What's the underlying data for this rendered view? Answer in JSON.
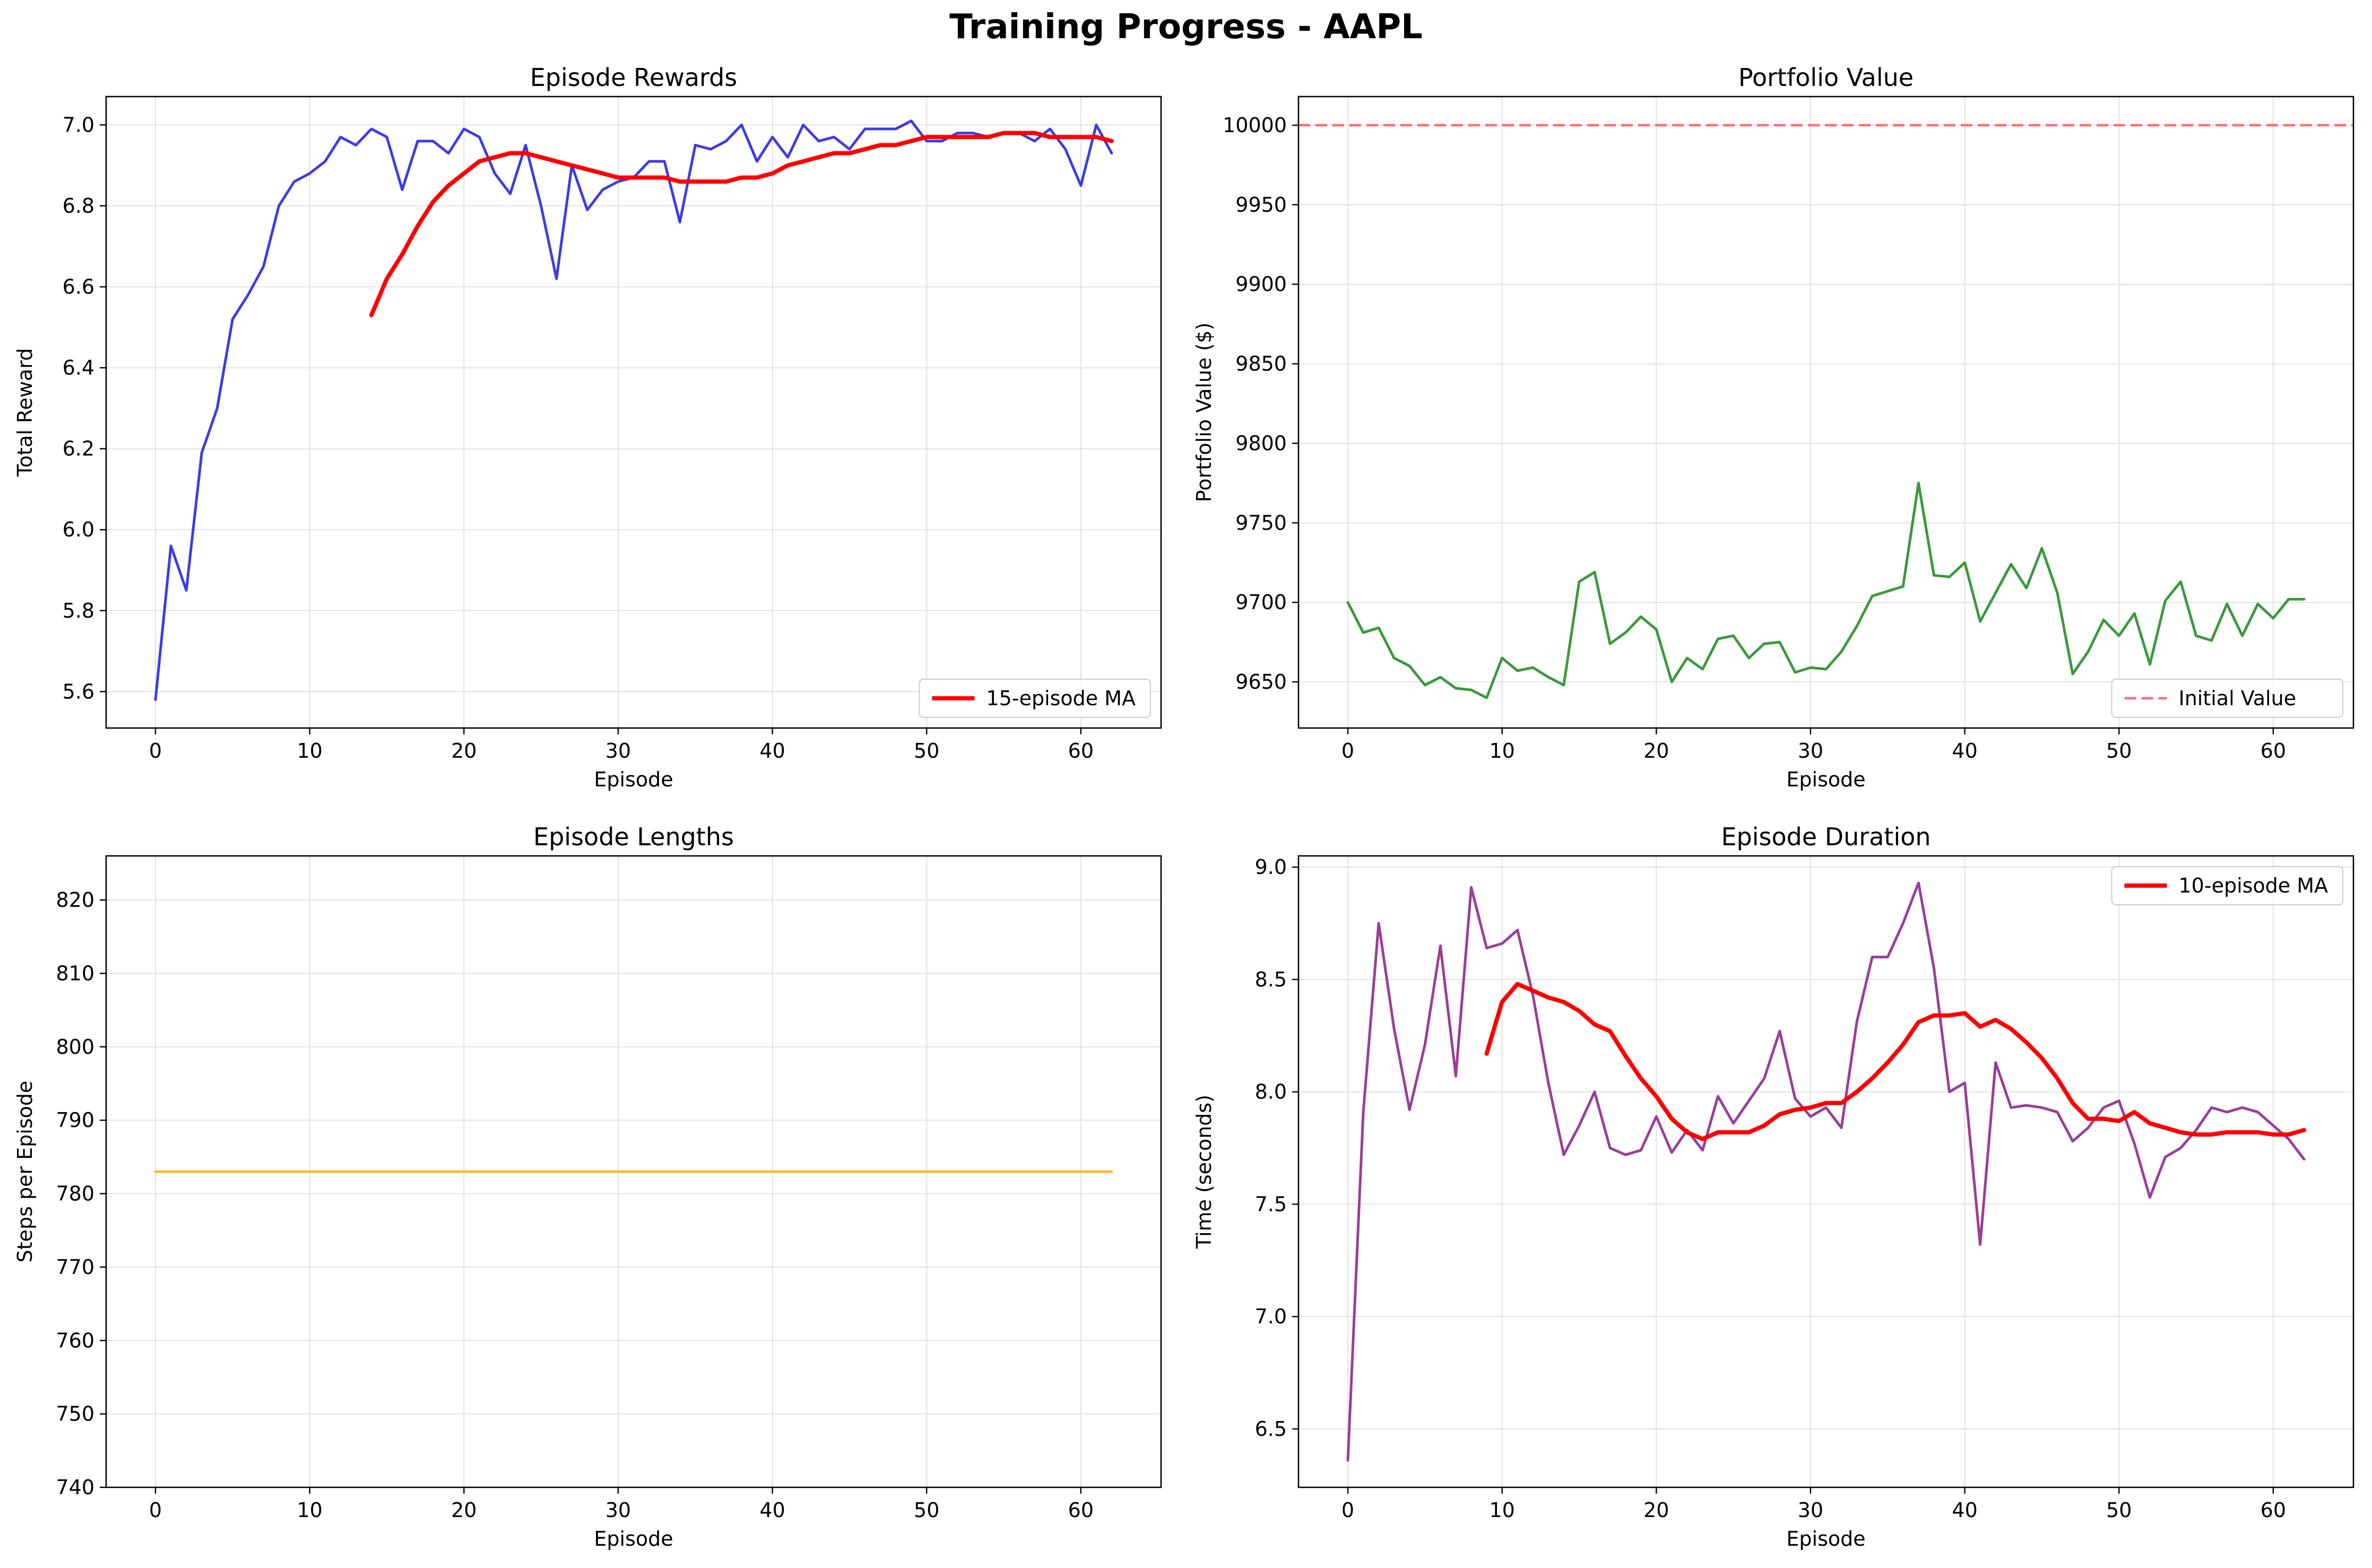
{
  "title": "Training Progress - AAPL",
  "colors": {
    "rewards_line": "#3b3bea",
    "ma_line": "#ff0000",
    "portfolio_line": "#3a9a3a",
    "initial_value_line": "#ff6b6b",
    "lengths_line": "#ffb733",
    "duration_line": "#9b3d9b",
    "grid": "#e2e2e2"
  },
  "chart_data": [
    {
      "type": "line",
      "title": "Episode Rewards",
      "xlabel": "Episode",
      "ylabel": "Total Reward",
      "xlim": [
        -3.2,
        65.2
      ],
      "ylim": [
        5.51,
        7.07
      ],
      "xticks": [
        0,
        10,
        20,
        30,
        40,
        50,
        60
      ],
      "xtick_labels": [
        "0",
        "10",
        "20",
        "30",
        "40",
        "50",
        "60"
      ],
      "yticks": [
        5.6,
        5.8,
        6.0,
        6.2,
        6.4,
        6.6,
        6.8,
        7.0
      ],
      "ytick_labels": [
        "5.6",
        "5.8",
        "6.0",
        "6.2",
        "6.4",
        "6.6",
        "6.8",
        "7.0"
      ],
      "grid": true,
      "legend_position": "lower-right",
      "series": [
        {
          "name": "",
          "color_key": "rewards_line",
          "x_start": 0,
          "values": [
            5.58,
            5.96,
            5.85,
            6.19,
            6.3,
            6.52,
            6.58,
            6.65,
            6.8,
            6.86,
            6.88,
            6.91,
            6.97,
            6.95,
            6.99,
            6.97,
            6.84,
            6.96,
            6.96,
            6.93,
            6.99,
            6.97,
            6.88,
            6.83,
            6.95,
            6.8,
            6.62,
            6.9,
            6.79,
            6.84,
            6.86,
            6.87,
            6.91,
            6.91,
            6.76,
            6.95,
            6.94,
            6.96,
            7.0,
            6.91,
            6.97,
            6.92,
            7.0,
            6.96,
            6.97,
            6.94,
            6.99,
            6.99,
            6.99,
            7.01,
            6.96,
            6.96,
            6.98,
            6.98,
            6.97,
            6.98,
            6.98,
            6.96,
            6.99,
            6.94,
            6.85,
            7.0,
            6.93
          ],
          "width": 5
        },
        {
          "name": "15-episode MA",
          "color_key": "ma_line",
          "x_start": 14,
          "values": [
            6.53,
            6.62,
            6.68,
            6.75,
            6.81,
            6.85,
            6.88,
            6.91,
            6.92,
            6.93,
            6.93,
            6.92,
            6.91,
            6.9,
            6.89,
            6.88,
            6.87,
            6.87,
            6.87,
            6.87,
            6.86,
            6.86,
            6.86,
            6.86,
            6.87,
            6.87,
            6.88,
            6.9,
            6.91,
            6.92,
            6.93,
            6.93,
            6.94,
            6.95,
            6.95,
            6.96,
            6.97,
            6.97,
            6.97,
            6.97,
            6.97,
            6.98,
            6.98,
            6.98,
            6.97,
            6.97,
            6.97,
            6.97,
            6.96
          ],
          "width": 8
        }
      ]
    },
    {
      "type": "line",
      "title": "Portfolio Value",
      "xlabel": "Episode",
      "ylabel": "Portfolio Value ($)",
      "xlim": [
        -3.2,
        65.2
      ],
      "ylim": [
        9621,
        10018
      ],
      "xticks": [
        0,
        10,
        20,
        30,
        40,
        50,
        60
      ],
      "xtick_labels": [
        "0",
        "10",
        "20",
        "30",
        "40",
        "50",
        "60"
      ],
      "yticks": [
        9650,
        9700,
        9750,
        9800,
        9850,
        9900,
        9950,
        10000
      ],
      "ytick_labels": [
        "9650",
        "9700",
        "9750",
        "9800",
        "9850",
        "9900",
        "9950",
        "10000"
      ],
      "grid": true,
      "legend_position": "lower-right",
      "reference_line": {
        "name": "Initial Value",
        "y": 10000,
        "color_key": "initial_value_line",
        "dashed": true
      },
      "series": [
        {
          "name": "",
          "color_key": "portfolio_line",
          "x_start": 0,
          "values": [
            9700,
            9681,
            9684,
            9665,
            9660,
            9648,
            9653,
            9646,
            9645,
            9640,
            9665,
            9657,
            9659,
            9653,
            9648,
            9713,
            9719,
            9674,
            9681,
            9691,
            9683,
            9650,
            9665,
            9658,
            9677,
            9679,
            9665,
            9674,
            9675,
            9656,
            9659,
            9658,
            9669,
            9685,
            9704,
            9707,
            9710,
            9775,
            9717,
            9716,
            9725,
            9688,
            9706,
            9724,
            9709,
            9734,
            9706,
            9655,
            9669,
            9689,
            9679,
            9693,
            9661,
            9701,
            9713,
            9679,
            9676,
            9699,
            9679,
            9699,
            9690,
            9702,
            9702
          ],
          "width": 5
        }
      ]
    },
    {
      "type": "line",
      "title": "Episode Lengths",
      "xlabel": "Episode",
      "ylabel": "Steps per Episode",
      "xlim": [
        -3.2,
        65.2
      ],
      "ylim": [
        740,
        826
      ],
      "xticks": [
        0,
        10,
        20,
        30,
        40,
        50,
        60
      ],
      "xtick_labels": [
        "0",
        "10",
        "20",
        "30",
        "40",
        "50",
        "60"
      ],
      "yticks": [
        740,
        750,
        760,
        770,
        780,
        790,
        800,
        810,
        820
      ],
      "ytick_labels": [
        "740",
        "750",
        "760",
        "770",
        "780",
        "790",
        "800",
        "810",
        "820"
      ],
      "grid": true,
      "series": [
        {
          "name": "",
          "color_key": "lengths_line",
          "x": [
            0,
            62
          ],
          "values": [
            783,
            783
          ],
          "width": 5
        }
      ]
    },
    {
      "type": "line",
      "title": "Episode Duration",
      "xlabel": "Episode",
      "ylabel": "Time (seconds)",
      "xlim": [
        -3.2,
        65.2
      ],
      "ylim": [
        6.24,
        9.05
      ],
      "xticks": [
        0,
        10,
        20,
        30,
        40,
        50,
        60
      ],
      "xtick_labels": [
        "0",
        "10",
        "20",
        "30",
        "40",
        "50",
        "60"
      ],
      "yticks": [
        6.5,
        7.0,
        7.5,
        8.0,
        8.5,
        9.0
      ],
      "ytick_labels": [
        "6.5",
        "7.0",
        "7.5",
        "8.0",
        "8.5",
        "9.0"
      ],
      "grid": true,
      "legend_position": "upper-right",
      "series": [
        {
          "name": "",
          "color_key": "duration_line",
          "x_start": 0,
          "values": [
            6.36,
            7.91,
            8.75,
            8.28,
            7.92,
            8.21,
            8.65,
            8.07,
            8.91,
            8.64,
            8.66,
            8.72,
            8.43,
            8.04,
            7.72,
            7.85,
            8.0,
            7.75,
            7.72,
            7.74,
            7.89,
            7.73,
            7.83,
            7.74,
            7.98,
            7.86,
            7.96,
            8.06,
            8.27,
            7.97,
            7.89,
            7.93,
            7.84,
            8.31,
            8.6,
            8.6,
            8.75,
            8.93,
            8.55,
            8.0,
            8.04,
            7.32,
            8.13,
            7.93,
            7.94,
            7.93,
            7.91,
            7.78,
            7.84,
            7.93,
            7.96,
            7.77,
            7.53,
            7.71,
            7.75,
            7.83,
            7.93,
            7.91,
            7.93,
            7.91,
            7.85,
            7.79,
            7.7
          ],
          "width": 5
        },
        {
          "name": "10-episode MA",
          "color_key": "ma_line",
          "x_start": 9,
          "values": [
            8.17,
            8.4,
            8.48,
            8.45,
            8.42,
            8.4,
            8.36,
            8.3,
            8.27,
            8.16,
            8.06,
            7.98,
            7.88,
            7.82,
            7.79,
            7.82,
            7.82,
            7.82,
            7.85,
            7.9,
            7.92,
            7.93,
            7.95,
            7.95,
            8.0,
            8.06,
            8.13,
            8.21,
            8.31,
            8.34,
            8.34,
            8.35,
            8.29,
            8.32,
            8.28,
            8.22,
            8.15,
            8.06,
            7.95,
            7.88,
            7.88,
            7.87,
            7.91,
            7.86,
            7.84,
            7.82,
            7.81,
            7.81,
            7.82,
            7.82,
            7.82,
            7.81,
            7.81,
            7.83
          ],
          "width": 8
        }
      ]
    }
  ]
}
